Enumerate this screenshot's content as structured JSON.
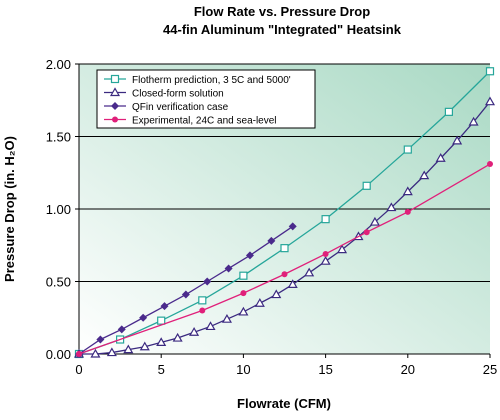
{
  "chart_data": {
    "type": "line",
    "title": "Flow Rate vs. Pressure Drop",
    "subtitle": "44-fin Aluminum \"Integrated\" Heatsink",
    "x_label": "Flowrate (CFM)",
    "y_label": "Pressure Drop  (in. H₂O)",
    "xlim": [
      0,
      25
    ],
    "ylim": [
      0,
      2
    ],
    "xticks": [
      0,
      5,
      10,
      15,
      20,
      25
    ],
    "yticks": [
      {
        "value": 0,
        "label": "0.00"
      },
      {
        "value": 0.5,
        "label": "0.50"
      },
      {
        "value": 1,
        "label": "1.00"
      },
      {
        "value": 1.5,
        "label": "1.50"
      },
      {
        "value": 2,
        "label": "2.00"
      }
    ],
    "grid": true,
    "legend": "upper left",
    "series": [
      {
        "name": "Flotherm prediction, 3 5C and 5000'",
        "color": "#26a69a",
        "marker": "square",
        "x": [
          0,
          2.5,
          5,
          7.5,
          10,
          12.5,
          15,
          17.5,
          20,
          22.5,
          25
        ],
        "values": [
          0,
          0.1,
          0.23,
          0.37,
          0.54,
          0.73,
          0.93,
          1.16,
          1.41,
          1.67,
          1.95
        ]
      },
      {
        "name": "Closed-form solution",
        "color": "#3b2a80",
        "marker": "triangle",
        "x": [
          0,
          1,
          2,
          3,
          4,
          5,
          6,
          7,
          8,
          9,
          10,
          11,
          12,
          13,
          14,
          15,
          16,
          17,
          18,
          19,
          20,
          21,
          22,
          23,
          24,
          25
        ],
        "values": [
          0,
          0,
          0.01,
          0.03,
          0.05,
          0.08,
          0.11,
          0.15,
          0.19,
          0.24,
          0.29,
          0.35,
          0.41,
          0.48,
          0.56,
          0.64,
          0.72,
          0.81,
          0.91,
          1.01,
          1.12,
          1.23,
          1.35,
          1.47,
          1.6,
          1.74
        ]
      },
      {
        "name": "QFin verification case",
        "color": "#4a2a8c",
        "marker": "diamond",
        "x": [
          0,
          1.3,
          2.6,
          3.9,
          5.2,
          6.5,
          7.8,
          9.1,
          10.4,
          11.7,
          13
        ],
        "values": [
          0,
          0.1,
          0.17,
          0.25,
          0.33,
          0.41,
          0.5,
          0.59,
          0.68,
          0.78,
          0.88
        ]
      },
      {
        "name": "Experimental, 24C and sea-level",
        "color": "#e0207a",
        "marker": "circle",
        "x": [
          0,
          7.5,
          10,
          12.5,
          15,
          17.5,
          20,
          25
        ],
        "values": [
          0,
          0.3,
          0.42,
          0.55,
          0.69,
          0.84,
          0.98,
          1.31
        ]
      }
    ]
  }
}
